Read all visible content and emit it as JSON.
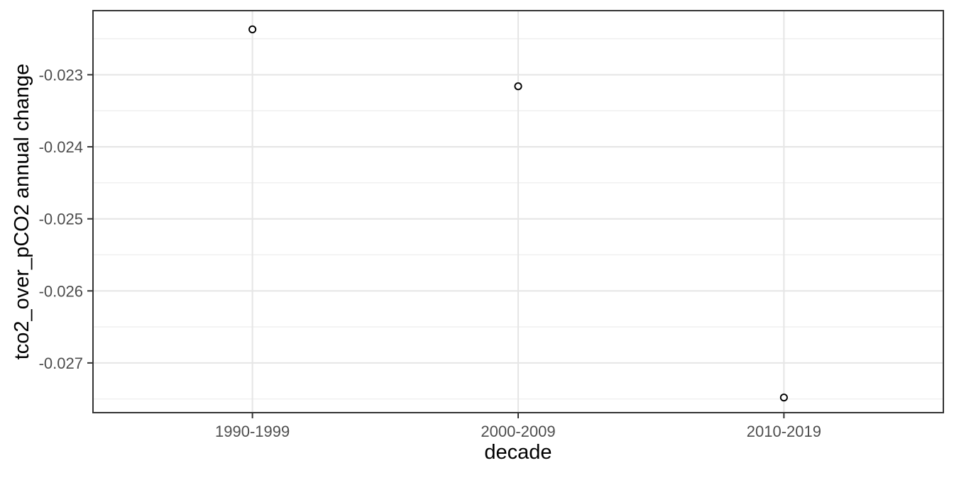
{
  "chart_data": {
    "type": "scatter",
    "title": "",
    "xlabel": "decade",
    "ylabel": "tco2_over_pCO2 annual change",
    "categories": [
      "1990-1999",
      "2000-2009",
      "2010-2019"
    ],
    "values": [
      -0.02237,
      -0.02316,
      -0.02748
    ],
    "ylim": [
      -0.02769,
      -0.02211
    ],
    "y_major_ticks": [
      -0.023,
      -0.024,
      -0.025,
      -0.026,
      -0.027
    ],
    "y_tick_labels": [
      "-0.023",
      "-0.024",
      "-0.025",
      "-0.026",
      "-0.027"
    ],
    "y_minor_ticks": [
      -0.0225,
      -0.0235,
      -0.0245,
      -0.0255,
      -0.0265,
      -0.0275
    ],
    "grid": "major-and-minor",
    "legend_position": "none",
    "marker": "open-circle",
    "colors": {
      "panel_background": "#ffffff",
      "panel_border": "#333333",
      "major_grid": "#e6e6e6",
      "minor_grid": "#efefef",
      "axis_tick": "#333333",
      "tick_label": "#4d4d4d",
      "axis_title": "#000000",
      "point_stroke": "#000000",
      "point_fill": "#ffffff"
    }
  }
}
